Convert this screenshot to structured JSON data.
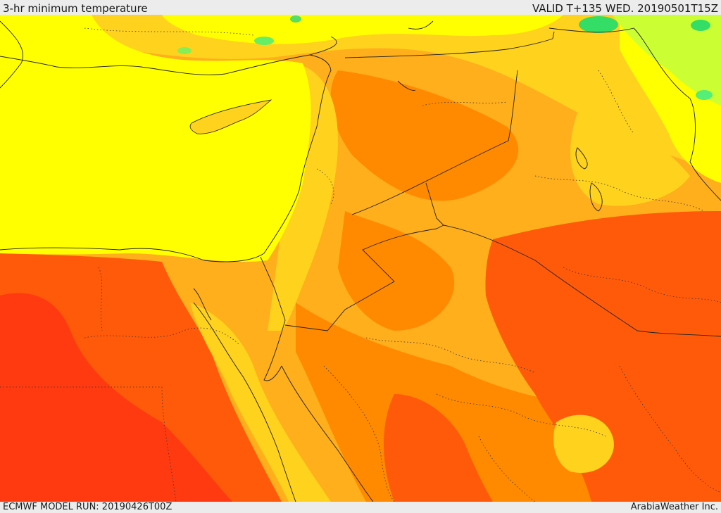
{
  "header": {
    "title": "3-hr minimum temperature",
    "valid": "VALID T+135 WED. 20190501T15Z"
  },
  "footer": {
    "model_run": "ECMWF MODEL RUN: 20190426T00Z",
    "credit": "ArabiaWeather Inc."
  },
  "map": {
    "field": "3-hr minimum temperature",
    "colors": {
      "green": "#33dd66",
      "yellow_green": "#ccff33",
      "yellow": "#ffff00",
      "light_orange": "#ffd21e",
      "orange": "#ffae1c",
      "dark_orange": "#ff8a00",
      "red_orange": "#ff5a0a",
      "red": "#ff3a10",
      "coast": "#222222"
    }
  }
}
